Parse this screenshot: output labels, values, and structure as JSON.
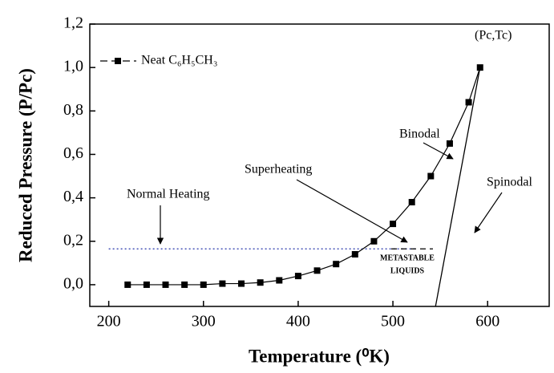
{
  "chart_data": {
    "type": "scatter",
    "x_label": "Temperature (⁰K)",
    "y_label": "Reduced Pressure (P/Pc)",
    "xlim": [
      180,
      665
    ],
    "ylim": [
      -0.1,
      1.2
    ],
    "xticks": [
      200,
      300,
      400,
      500,
      600
    ],
    "yticks": [
      {
        "value": 0.0,
        "label": "0,0"
      },
      {
        "value": 0.2,
        "label": "0,2"
      },
      {
        "value": 0.4,
        "label": "0,4"
      },
      {
        "value": 0.6,
        "label": "0,6"
      },
      {
        "value": 0.8,
        "label": "0,8"
      },
      {
        "value": 1.0,
        "label": "1,0"
      },
      {
        "value": 1.2,
        "label": "1,2"
      }
    ],
    "series": [
      {
        "name": "Neat C₆H₅CH₃",
        "color": "#000000",
        "x": [
          220,
          240,
          260,
          280,
          300,
          320,
          340,
          360,
          380,
          400,
          420,
          440,
          460,
          480,
          500,
          520,
          540,
          560,
          580,
          592
        ],
        "values": [
          0,
          0,
          0,
          0,
          0,
          0.005,
          0.005,
          0.01,
          0.02,
          0.04,
          0.065,
          0.095,
          0.14,
          0.2,
          0.28,
          0.38,
          0.5,
          0.65,
          0.84,
          1.0
        ]
      }
    ],
    "spinodal": {
      "label": "Spinodal",
      "x": [
        545,
        592
      ],
      "y": [
        -0.1,
        1.0
      ]
    },
    "normal_heating": {
      "label": "Normal Heating",
      "x": [
        200,
        525
      ],
      "y": [
        0.165,
        0.165
      ]
    },
    "annotations": {
      "binodal": "Binodal",
      "superheating": "Superheating",
      "metastable": [
        "METASTABLE",
        "LIQUIDS"
      ],
      "critical_point": "(Pc,Tc)"
    }
  }
}
